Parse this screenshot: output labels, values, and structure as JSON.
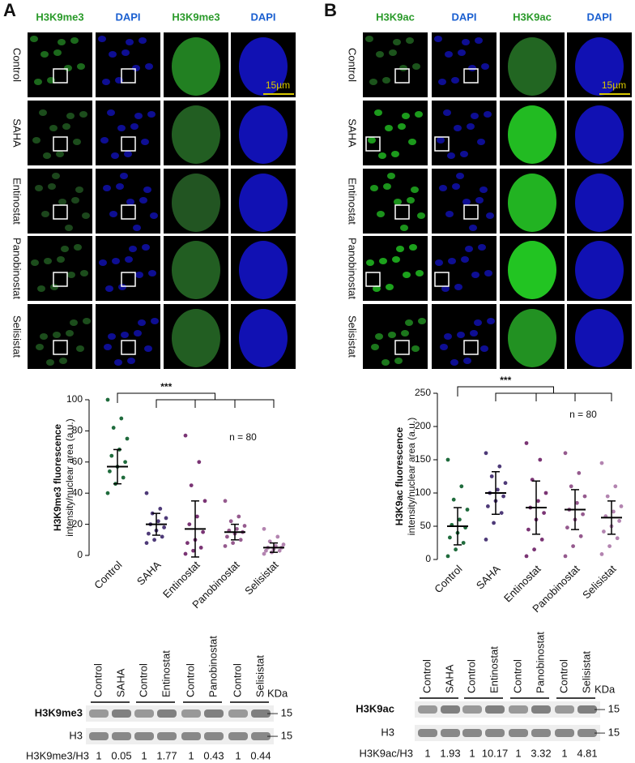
{
  "panel_a": {
    "letter": "A",
    "columns": [
      "H3K9me3",
      "DAPI",
      "H3K9me3",
      "DAPI"
    ],
    "rows": [
      "Control",
      "SAHA",
      "Entinostat",
      "Panobinostat",
      "Selisistat"
    ],
    "scale_bar": "15µm"
  },
  "panel_b": {
    "letter": "B",
    "columns": [
      "H3K9ac",
      "DAPI",
      "H3K9ac",
      "DAPI"
    ],
    "rows": [
      "Control",
      "SAHA",
      "Entinostat",
      "Panobinostat",
      "Selisistat"
    ],
    "scale_bar": "15µm"
  },
  "chart_data": [
    {
      "type": "dot",
      "ylabel": [
        "H3K9me3 fluorescence",
        "intensity/nuclear area (a.u.)"
      ],
      "categories": [
        "Control",
        "SAHA",
        "Entinostat",
        "Panobinostat",
        "Selisistat"
      ],
      "ylim": [
        0,
        100
      ],
      "yticks": [
        0,
        20,
        40,
        60,
        80,
        100
      ],
      "annotation": "***",
      "n_label": "n = 80",
      "groups": [
        {
          "color": "#1f6b3c",
          "mean": 57,
          "sd": 11,
          "values": [
            100,
            88,
            82,
            75,
            68,
            64,
            60,
            57,
            54,
            50,
            46,
            40
          ]
        },
        {
          "color": "#4e3a78",
          "mean": 20,
          "sd": 7,
          "values": [
            40,
            30,
            27,
            24,
            22,
            20,
            18,
            16,
            14,
            12,
            10,
            8
          ]
        },
        {
          "color": "#7a3474",
          "mean": 17,
          "sd": 18,
          "values": [
            77,
            60,
            45,
            35,
            25,
            20,
            15,
            10,
            8,
            5,
            3,
            1
          ]
        },
        {
          "color": "#955a8e",
          "mean": 15,
          "sd": 5,
          "values": [
            35,
            25,
            22,
            19,
            17,
            16,
            15,
            14,
            12,
            10,
            8,
            6
          ]
        },
        {
          "color": "#b384b0",
          "mean": 5,
          "sd": 3,
          "values": [
            17,
            12,
            9,
            7,
            6,
            5,
            5,
            4,
            3,
            3,
            2,
            1
          ]
        }
      ]
    },
    {
      "type": "dot",
      "ylabel": [
        "H3K9ac fluorescence",
        "intensity/nuclear area (a.u.)"
      ],
      "categories": [
        "Control",
        "SAHA",
        "Entinostat",
        "Panobinostat",
        "Selisistat"
      ],
      "ylim": [
        0,
        250
      ],
      "yticks": [
        0,
        50,
        100,
        150,
        200,
        250
      ],
      "annotation": "***",
      "n_label": "n = 80",
      "groups": [
        {
          "color": "#1f6b3c",
          "mean": 50,
          "sd": 28,
          "values": [
            150,
            110,
            90,
            75,
            60,
            52,
            48,
            40,
            33,
            25,
            15,
            5
          ]
        },
        {
          "color": "#4e3a78",
          "mean": 100,
          "sd": 32,
          "values": [
            160,
            140,
            125,
            115,
            105,
            100,
            95,
            88,
            80,
            70,
            55,
            30
          ]
        },
        {
          "color": "#7a3474",
          "mean": 78,
          "sd": 40,
          "values": [
            175,
            150,
            120,
            100,
            88,
            78,
            70,
            60,
            45,
            30,
            15,
            5
          ]
        },
        {
          "color": "#955a8e",
          "mean": 75,
          "sd": 30,
          "values": [
            160,
            130,
            110,
            95,
            85,
            75,
            68,
            60,
            48,
            35,
            20,
            5
          ]
        },
        {
          "color": "#b384b0",
          "mean": 63,
          "sd": 25,
          "values": [
            145,
            110,
            95,
            80,
            72,
            65,
            58,
            50,
            42,
            32,
            20,
            8
          ]
        }
      ]
    }
  ],
  "blot_a": {
    "lanes": [
      "Control",
      "SAHA",
      "Control",
      "Entinostat",
      "Control",
      "Panobinostat",
      "Control",
      "Selisistat"
    ],
    "unit": "KDa",
    "bands": [
      "H3K9me3",
      "H3"
    ],
    "markers": [
      "— 15",
      "— 15"
    ],
    "ratio_label": "H3K9me3/H3",
    "ratios": [
      1,
      0.05,
      1,
      1.77,
      1,
      0.43,
      1,
      0.44
    ]
  },
  "blot_b": {
    "lanes": [
      "Control",
      "SAHA",
      "Control",
      "Entinostat",
      "Control",
      "Panobinostat",
      "Control",
      "Selisistat"
    ],
    "unit": "KDa",
    "bands": [
      "H3K9ac",
      "H3"
    ],
    "markers": [
      "— 15",
      "— 15"
    ],
    "ratio_label": "H3K9ac/H3",
    "ratios": [
      1,
      1.93,
      1,
      10.17,
      1,
      3.32,
      1,
      4.81
    ]
  }
}
